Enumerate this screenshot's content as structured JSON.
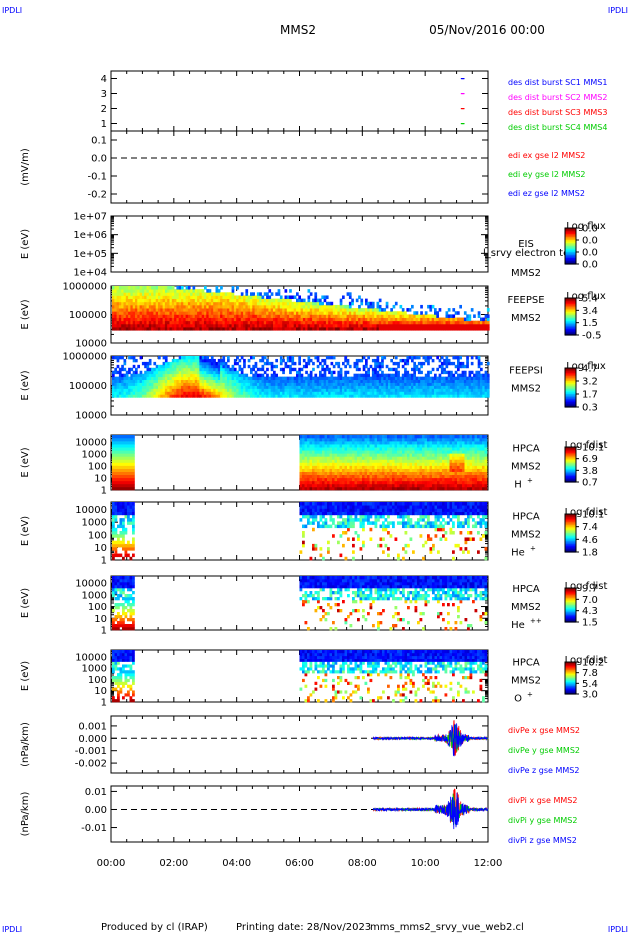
{
  "corner_label": "IPDLI",
  "header": {
    "mission": "MMS2",
    "datetime": "05/Nov/2016 00:00"
  },
  "footer": {
    "produced_by": "Produced by cl (IRAP)",
    "printing_date": "Printing date: 28/Nov/2023",
    "filename": "mms_mms2_srvy_vue_web2.cl"
  },
  "colors": {
    "blue": "#0000ff",
    "magenta": "#ff00ff",
    "red": "#ff0000",
    "green": "#00cc00",
    "black": "#000000"
  },
  "chart_data": [
    {
      "type": "scatter",
      "id": "des_dist",
      "ylabel": "",
      "yticks": [
        "4",
        "3",
        "2",
        "1"
      ],
      "ylim": [
        0.5,
        4.5
      ],
      "legend": [
        {
          "text": "des dist burst SC1 MMS1",
          "color": "#0000ff"
        },
        {
          "text": "des dist burst SC2 MMS2",
          "color": "#ff00ff"
        },
        {
          "text": "des dist burst SC3 MMS3",
          "color": "#ff0000"
        },
        {
          "text": "des dist burst SC4 MMS4",
          "color": "#00cc00"
        }
      ],
      "series": [
        {
          "name": "des dist burst SC1 MMS1",
          "x": [
            "11:10",
            "11:12",
            "11:14"
          ],
          "y": [
            4,
            4,
            4
          ]
        },
        {
          "name": "des dist burst SC2 MMS2",
          "x": [
            "11:10",
            "11:12",
            "11:14"
          ],
          "y": [
            3,
            3,
            3
          ]
        },
        {
          "name": "des dist burst SC3 MMS3",
          "x": [
            "11:10",
            "11:12",
            "11:14"
          ],
          "y": [
            2,
            2,
            2
          ]
        },
        {
          "name": "des dist burst SC4 MMS4",
          "x": [
            "11:10",
            "11:12",
            "11:14"
          ],
          "y": [
            1,
            1,
            1
          ]
        }
      ]
    },
    {
      "type": "line",
      "id": "edi",
      "ylabel": "(mV/m)",
      "yticks": [
        "0.1",
        "0.0",
        "-0.1",
        "-0.2"
      ],
      "ylim": [
        -0.25,
        0.15
      ],
      "legend": [
        {
          "text": "edi ex gse l2 MMS2",
          "color": "#ff0000"
        },
        {
          "text": "edi ey gse l2 MMS2",
          "color": "#00cc00"
        },
        {
          "text": "edi ez gse l2 MMS2",
          "color": "#0000ff"
        }
      ]
    },
    {
      "type": "heatmap",
      "id": "eis",
      "ylabel": "E (eV)",
      "yticks": [
        "1e+07",
        "1e+06",
        "1e+05",
        "1e+04"
      ],
      "ylim": [
        10000,
        10000000
      ],
      "labels": [
        "EIS",
        "MMS2"
      ],
      "overlay_text": "l_srvy electron to",
      "colorbar": {
        "title": "Log flux",
        "ticks": [
          "0.0",
          "0.0",
          "0.0",
          "0.0"
        ]
      }
    },
    {
      "type": "heatmap",
      "id": "feepse",
      "ylabel": "E (eV)",
      "yticks": [
        "1000000",
        "100000",
        "10000"
      ],
      "ylim": [
        10000,
        1000000
      ],
      "labels": [
        "FEEPSE",
        "MMS2"
      ],
      "colorbar": {
        "title": "Log flux",
        "ticks": [
          "5.4",
          "3.4",
          "1.5",
          "-0.5"
        ]
      }
    },
    {
      "type": "heatmap",
      "id": "feepsi",
      "ylabel": "E (eV)",
      "yticks": [
        "1000000",
        "100000",
        "10000"
      ],
      "ylim": [
        10000,
        1000000
      ],
      "labels": [
        "FEEPSI",
        "MMS2"
      ],
      "colorbar": {
        "title": "Log flux",
        "ticks": [
          "4.7",
          "3.2",
          "1.7",
          "0.3"
        ]
      }
    },
    {
      "type": "heatmap",
      "id": "hpca_h",
      "ylabel": "E (eV)",
      "yticks": [
        "10000",
        "1000",
        "100",
        "10",
        "1"
      ],
      "ylim": [
        1,
        40000
      ],
      "labels": [
        "HPCA",
        "MMS2"
      ],
      "species": "H",
      "species_sup": "+",
      "colorbar": {
        "title": "Log fdist",
        "ticks": [
          "10.1",
          "6.9",
          "3.8",
          "0.7"
        ]
      }
    },
    {
      "type": "heatmap",
      "id": "hpca_he",
      "ylabel": "E (eV)",
      "yticks": [
        "10000",
        "1000",
        "100",
        "10",
        "1"
      ],
      "ylim": [
        1,
        40000
      ],
      "labels": [
        "HPCA",
        "MMS2"
      ],
      "species": "He",
      "species_sup": "+",
      "colorbar": {
        "title": "Log fdist",
        "ticks": [
          "10.1",
          "7.4",
          "4.6",
          "1.8"
        ]
      }
    },
    {
      "type": "heatmap",
      "id": "hpca_hepp",
      "ylabel": "E (eV)",
      "yticks": [
        "10000",
        "1000",
        "100",
        "10",
        "1"
      ],
      "ylim": [
        1,
        40000
      ],
      "labels": [
        "HPCA",
        "MMS2"
      ],
      "species": "He",
      "species_sup": "++",
      "colorbar": {
        "title": "Log fdist",
        "ticks": [
          "9.7",
          "7.0",
          "4.3",
          "1.5"
        ]
      }
    },
    {
      "type": "heatmap",
      "id": "hpca_o",
      "ylabel": "E (eV)",
      "yticks": [
        "10000",
        "1000",
        "100",
        "10",
        "1"
      ],
      "ylim": [
        1,
        40000
      ],
      "labels": [
        "HPCA",
        "MMS2"
      ],
      "species": "O",
      "species_sup": "+",
      "colorbar": {
        "title": "Log fdist",
        "ticks": [
          "10.2",
          "7.8",
          "5.4",
          "3.0"
        ]
      }
    },
    {
      "type": "line",
      "id": "divpe",
      "ylabel": "(nPa/km)",
      "yticks": [
        "0.001",
        "0.000",
        "-0.001",
        "-0.002"
      ],
      "ylim": [
        -0.0028,
        0.0018
      ],
      "legend": [
        {
          "text": "divPe x gse MMS2",
          "color": "#ff0000"
        },
        {
          "text": "divPe y gse MMS2",
          "color": "#00cc00"
        },
        {
          "text": "divPe z gse MMS2",
          "color": "#0000ff"
        }
      ]
    },
    {
      "type": "line",
      "id": "divpi",
      "ylabel": "(nPa/km)",
      "yticks": [
        "0.01",
        "0.00",
        "-0.01"
      ],
      "ylim": [
        -0.018,
        0.013
      ],
      "legend": [
        {
          "text": "divPi x gse MMS2",
          "color": "#ff0000"
        },
        {
          "text": "divPi y gse MMS2",
          "color": "#00cc00"
        },
        {
          "text": "divPi z gse MMS2",
          "color": "#0000ff"
        }
      ],
      "xticks": [
        "00:00",
        "02:00",
        "04:00",
        "06:00",
        "08:00",
        "10:00",
        "12:00"
      ]
    }
  ]
}
